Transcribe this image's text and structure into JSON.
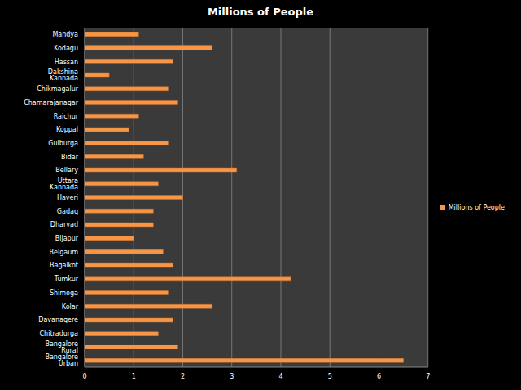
{
  "chart_data": {
    "type": "bar",
    "title": "Millions of People",
    "orientation": "horizontal",
    "categories": [
      "Mandya",
      "Kodagu",
      "Hassan",
      "Dakshina Kannada",
      "Chikmagalur",
      "Chamarajanagar",
      "Raichur",
      "Koppal",
      "Gulburga",
      "Bidar",
      "Bellary",
      "Uttara Kannada",
      "Haveri",
      "Gadag",
      "Dharvad",
      "Bijapur",
      "Belgaum",
      "Bagalkot",
      "Tumkur",
      "Shimoga",
      "Kolar",
      "Davanagere",
      "Chitradurga",
      "Bangalore Rural",
      "Bangalore Urban"
    ],
    "series": [
      {
        "name": "Millions of People",
        "color": "#f79646",
        "values": [
          1.1,
          2.6,
          1.8,
          0.5,
          1.7,
          1.9,
          1.1,
          0.9,
          1.7,
          1.2,
          3.1,
          1.5,
          2.0,
          1.4,
          1.4,
          1.0,
          1.6,
          1.8,
          4.2,
          1.7,
          2.6,
          1.8,
          1.5,
          1.9,
          6.5
        ]
      }
    ],
    "xlim": [
      0,
      7
    ],
    "xticks": [
      0,
      1,
      2,
      3,
      4,
      5,
      6,
      7
    ],
    "grid": true,
    "legend": "right"
  }
}
